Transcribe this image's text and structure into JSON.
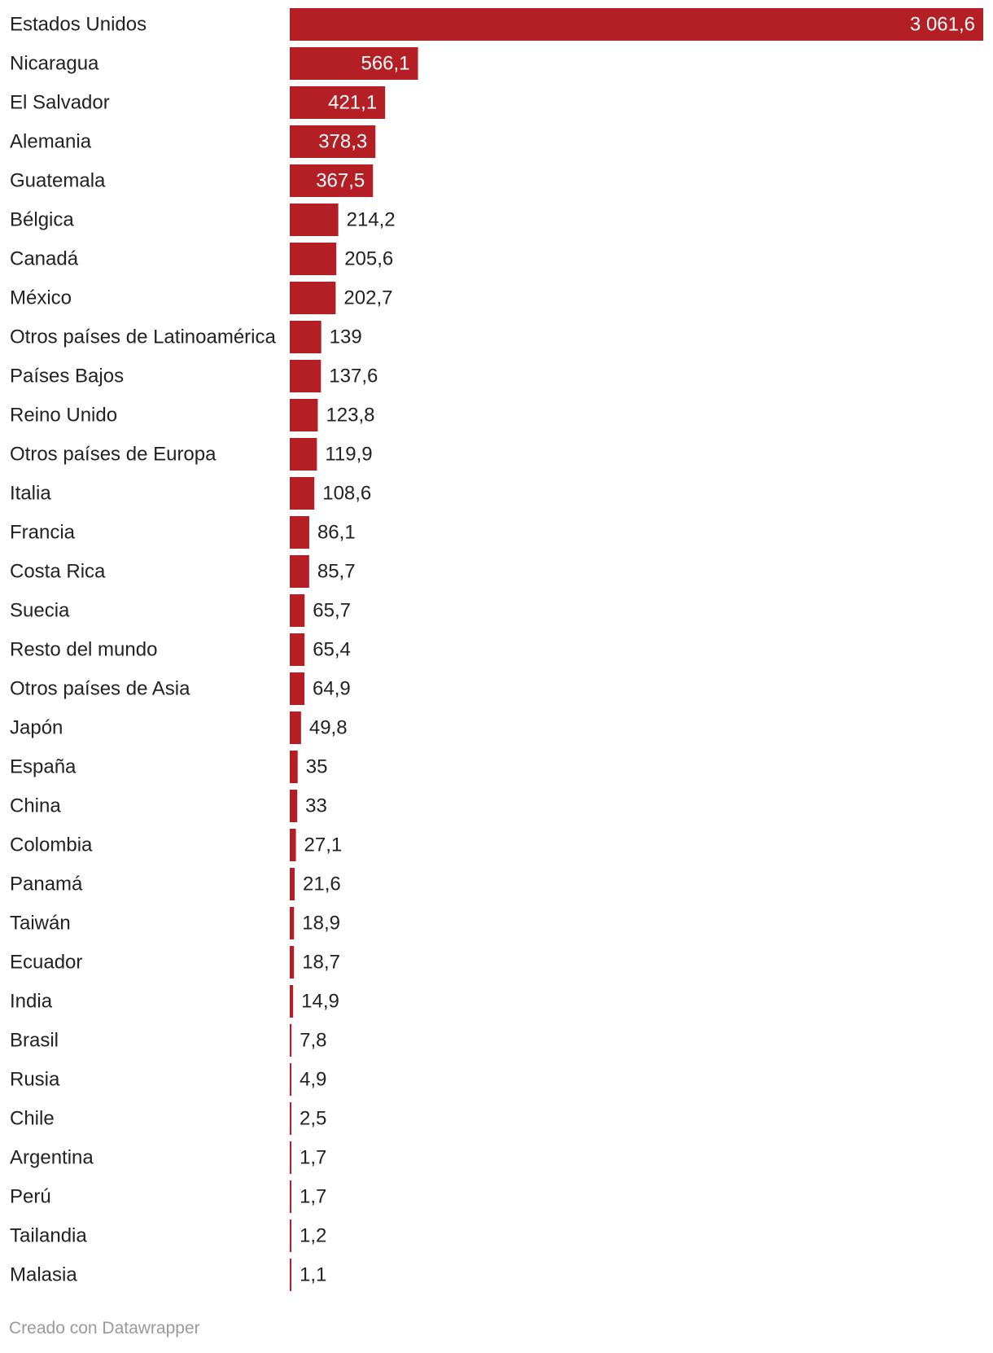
{
  "chart_data": {
    "type": "bar",
    "orientation": "horizontal",
    "bar_color": "#b31f24",
    "inside_label_color": "#ffffff",
    "outside_label_color": "#222222",
    "categories": [
      "Estados Unidos",
      "Nicaragua",
      "El Salvador",
      "Alemania",
      "Guatemala",
      "Bélgica",
      "Canadá",
      "México",
      "Otros países de Latinoamérica",
      "Países Bajos",
      "Reino Unido",
      "Otros países de Europa",
      "Italia",
      "Francia",
      "Costa Rica",
      "Suecia",
      "Resto del mundo",
      "Otros países de Asia",
      "Japón",
      "España",
      "China",
      "Colombia",
      "Panamá",
      "Taiwán",
      "Ecuador",
      "India",
      "Brasil",
      "Rusia",
      "Chile",
      "Argentina",
      "Perú",
      "Tailandia",
      "Malasia"
    ],
    "values": [
      3061.6,
      566.1,
      421.1,
      378.3,
      367.5,
      214.2,
      205.6,
      202.7,
      139,
      137.6,
      123.8,
      119.9,
      108.6,
      86.1,
      85.7,
      65.7,
      65.4,
      64.9,
      49.8,
      35,
      33,
      27.1,
      21.6,
      18.9,
      18.7,
      14.9,
      7.8,
      4.9,
      2.5,
      1.7,
      1.7,
      1.2,
      1.1
    ],
    "value_labels": [
      "3 061,6",
      "566,1",
      "421,1",
      "378,3",
      "367,5",
      "214,2",
      "205,6",
      "202,7",
      "139",
      "137,6",
      "123,8",
      "119,9",
      "108,6",
      "86,1",
      "85,7",
      "65,7",
      "65,4",
      "64,9",
      "49,8",
      "35",
      "33",
      "27,1",
      "21,6",
      "18,9",
      "18,7",
      "14,9",
      "7,8",
      "4,9",
      "2,5",
      "1,7",
      "1,7",
      "1,2",
      "1,1"
    ],
    "xlim": [
      0,
      3061.6
    ]
  },
  "footer": {
    "credit": "Creado con Datawrapper"
  }
}
